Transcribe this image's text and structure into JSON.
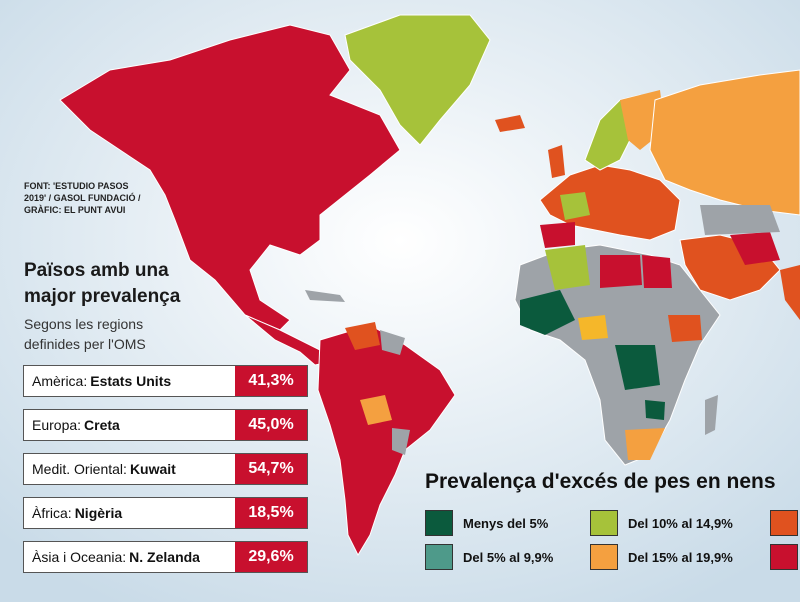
{
  "source": {
    "lines": [
      "FONT: 'ESTUDIO PASOS",
      "2019' / GASOL FUNDACIÓ /",
      "GRÀFIC: EL PUNT AVUI"
    ]
  },
  "panel": {
    "title_lines": [
      "Països amb una",
      "major prevalença"
    ],
    "subtitle_lines": [
      "Segons les regions",
      "definides per l'OMS"
    ]
  },
  "ranking": [
    {
      "region": "Amèrica:",
      "country": "Estats Units",
      "value": "41,3%"
    },
    {
      "region": "Europa:",
      "country": "Creta",
      "value": "45,0%"
    },
    {
      "region": "Medit. Oriental:",
      "country": "Kuwait",
      "value": "54,7%"
    },
    {
      "region": "Àfrica:",
      "country": "Nigèria",
      "value": "18,5%"
    },
    {
      "region": "Àsia i Oceania:",
      "country": "N. Zelanda",
      "value": "29,6%"
    }
  ],
  "legend": {
    "title": "Prevalença d'excés de pes en nens",
    "items": [
      {
        "label": "Menys del 5%",
        "color": "#0b5a3d"
      },
      {
        "label": "Del 5% al 9,9%",
        "color": "#4e9a8a"
      },
      {
        "label": "Del 10% al 14,9%",
        "color": "#a6c23a"
      },
      {
        "label": "Del 15% al 19,9%",
        "color": "#f4a040"
      },
      {
        "label": "",
        "color": "#e0521f"
      },
      {
        "label": "",
        "color": "#c8102e"
      }
    ]
  },
  "colors": {
    "ocean": "#dfe9f1",
    "no_data": "#9ea3a8",
    "high": "#c8102e",
    "mid_high": "#e0521f",
    "mid": "#f4a040",
    "low_mid": "#a6c23a",
    "low": "#0b5a3d",
    "low2": "#4e9a8a",
    "yellow": "#f5b72a"
  }
}
